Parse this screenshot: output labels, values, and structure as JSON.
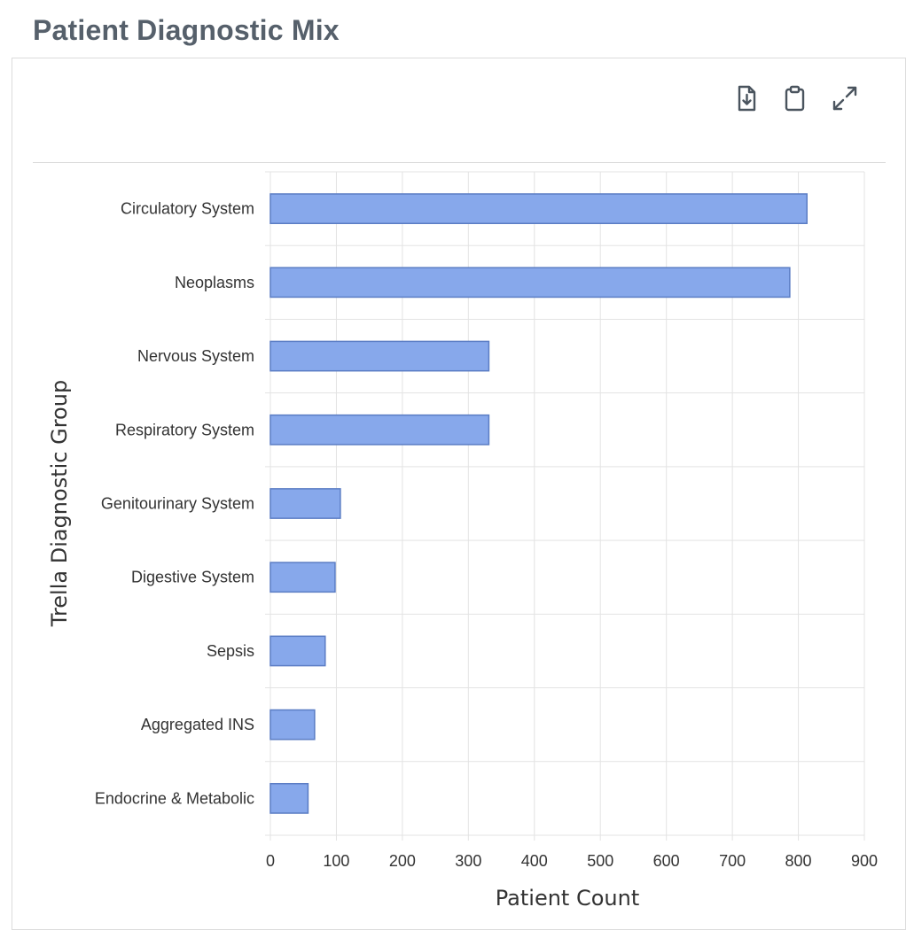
{
  "page": {
    "title": "Patient Diagnostic Mix"
  },
  "toolbar": {
    "download_icon": "file-download-icon",
    "clipboard_icon": "clipboard-icon",
    "expand_icon": "expand-icon"
  },
  "colors": {
    "bar_fill": "#87a8eb",
    "bar_stroke": "#5b7dc4",
    "grid": "#e3e3e3",
    "text": "#333333",
    "title": "#56606b"
  },
  "chart_data": {
    "type": "bar",
    "orientation": "horizontal",
    "title": "",
    "xlabel": "Patient Count",
    "ylabel": "Trella Diagnostic Group",
    "xlim": [
      0,
      900
    ],
    "x_ticks": [
      0,
      100,
      200,
      300,
      400,
      500,
      600,
      700,
      800,
      900
    ],
    "grid": true,
    "legend": "none",
    "categories": [
      "Circulatory System",
      "Neoplasms",
      "Nervous System",
      "Respiratory System",
      "Genitourinary System",
      "Digestive System",
      "Sepsis",
      "Aggregated INS",
      "Endocrine & Metabolic"
    ],
    "values": [
      813,
      787,
      331,
      331,
      106,
      98,
      83,
      67,
      57
    ]
  }
}
